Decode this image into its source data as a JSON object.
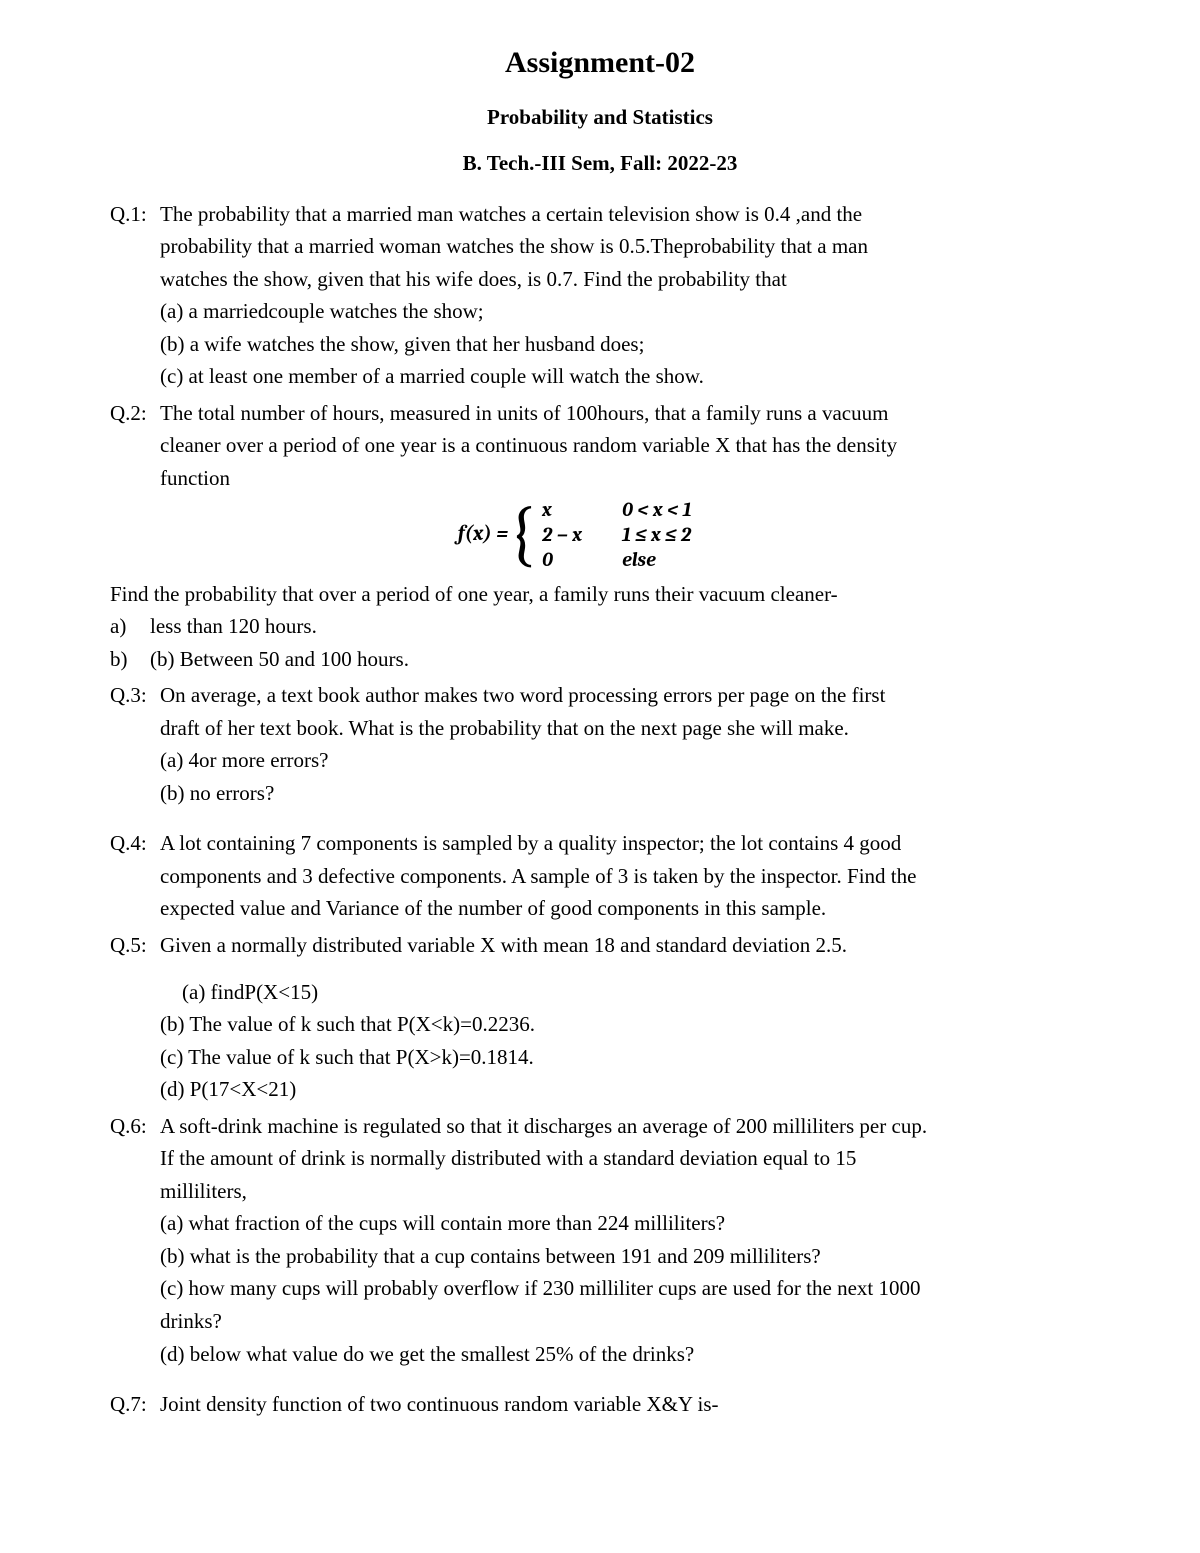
{
  "header": {
    "title": "Assignment-02",
    "subtitle": "Probability and Statistics",
    "sem": "B.  Tech.-III Sem, Fall: 2022-23"
  },
  "q1": {
    "num": "Q.1:",
    "text1": "The probability that a married man watches a certain television show is 0.4 ,and the",
    "text2": "probability that a married woman watches the show is 0.5.Theprobability that a  man",
    "text3": "watches the show, given that his wife does, is 0.7. Find the probability that",
    "a": "(a) a marriedcouple watches the show;",
    "b": "(b) a wife watches the show, given that her husband does;",
    "c": "(c) at least one member of a married couple will watch the show."
  },
  "q2": {
    "num": "Q.2:",
    "text1": " The total number of hours, measured in units of 100hours, that a family runs a vacuum",
    "text2": "cleaner over a period of one year is a continuous random variable X that has the density",
    "text3": "function",
    "formula": {
      "lhs": "f(x) = ",
      "r1c1": "x",
      "r1c2": "0 < x < 1",
      "r2c1": "2 − x",
      "r2c2": "1 ≤ x ≤ 2",
      "r3c1": "0",
      "r3c2": "else"
    },
    "post": " Find the probability that over a period of one year, a family runs their vacuum cleaner-",
    "a_label": "a)",
    "a_text": "less than 120 hours.",
    "b_label": "b)",
    "b_text": "(b)   Between 50 and 100 hours."
  },
  "q3": {
    "num": " Q.3:",
    "text1": "On average, a text book author makes two word processing errors per page on the first",
    "text2": "draft of her text book. What is the probability that on the next page she will make.",
    "a": "(a) 4or more errors?",
    "b": "(b) no errors?"
  },
  "q4": {
    "num": "Q.4:",
    "text1": " A lot containing 7 components is sampled by a quality inspector; the lot contains 4 good",
    "text2": "components and 3 defective components. A sample of 3 is taken by the inspector. Find the",
    "text3": "expected value and Variance of the number of good components in this sample."
  },
  "q5": {
    "num": "Q.5:",
    "text1": " Given a normally distributed variable X with mean 18 and standard deviation 2.5.",
    "a": " (a)  findP(X<15)",
    "b": "(b) The value of k such that P(X<k)=0.2236.",
    "c": "(c) The value of k such that P(X>k)=0.1814.",
    "d": "(d) P(17<X<21)"
  },
  "q6": {
    "num": "Q.6:",
    "text1": "A soft-drink machine is regulated so that it discharges an average of 200 milliliters per cup.",
    "text2": "If the amount of drink is normally distributed with a standard deviation equal to 15",
    "text3": "milliliters,",
    "a": "(a)  what fraction of the cups will contain more than 224 milliliters?",
    "b": "(b)  what is the probability that a cup contains between 191 and 209 milliliters?",
    "c1": "(c) how many cups will probably overflow if 230 milliliter cups are used for the next 1000",
    "c2": "drinks?",
    "d": "(d)  below what value do we get the smallest 25% of the drinks?"
  },
  "q7": {
    "num": "Q.7:",
    "text1": " Joint density function of two continuous random variable X&Y is-"
  }
}
